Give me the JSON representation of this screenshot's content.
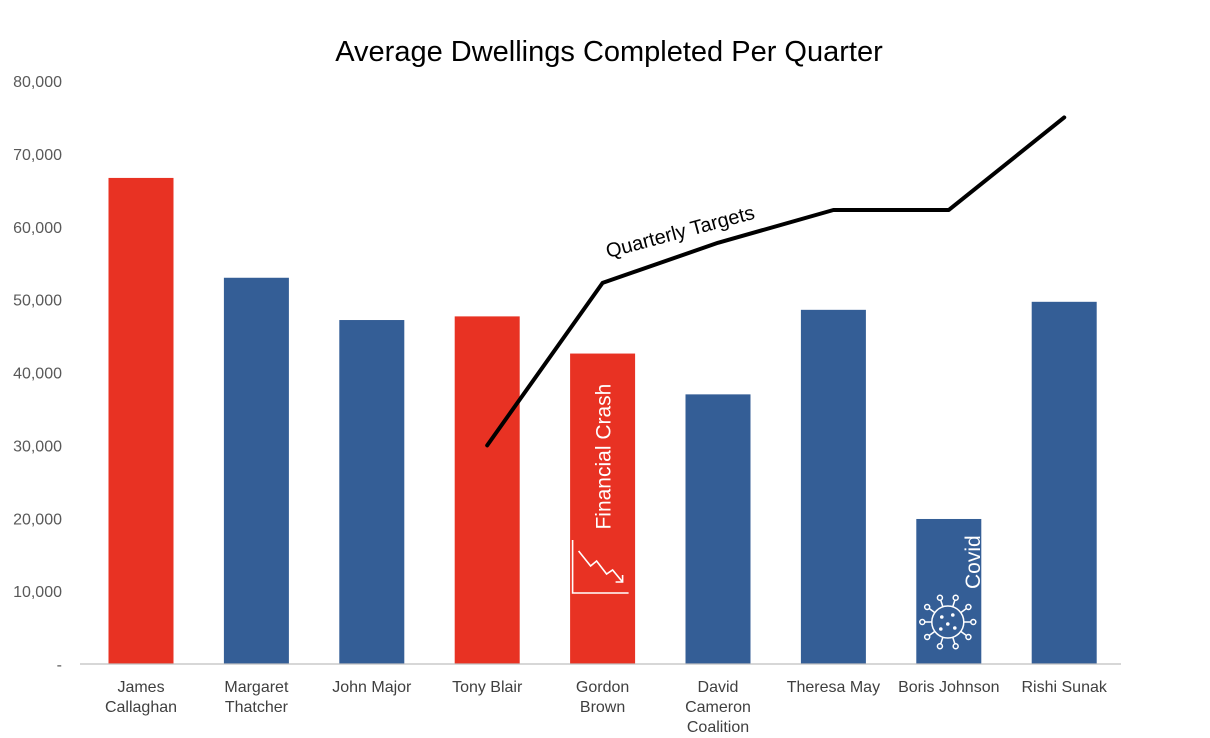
{
  "chart_data": {
    "type": "bar",
    "title": "Average Dwellings Completed Per Quarter",
    "xlabel": "",
    "ylabel": "",
    "ylim": [
      0,
      80000
    ],
    "y_ticks": [
      "-",
      "10,000",
      "20,000",
      "30,000",
      "40,000",
      "50,000",
      "60,000",
      "70,000",
      "80,000"
    ],
    "grid": false,
    "categories": [
      [
        "James",
        "Callaghan"
      ],
      [
        "Margaret",
        "Thatcher"
      ],
      [
        "John Major"
      ],
      [
        "Tony Blair"
      ],
      [
        "Gordon",
        "Brown"
      ],
      [
        "David",
        "Cameron",
        "Coalition"
      ],
      [
        "Theresa May"
      ],
      [
        "Boris Johnson"
      ],
      [
        "Rishi Sunak"
      ]
    ],
    "values": [
      66700,
      53000,
      47200,
      47700,
      42600,
      37000,
      48600,
      19900,
      49700
    ],
    "bar_colors": [
      "#e83223",
      "#345e96",
      "#345e96",
      "#e83223",
      "#e83223",
      "#345e96",
      "#345e96",
      "#345e96",
      "#345e96"
    ],
    "line_series": {
      "name": "Quarterly Targets",
      "points": [
        {
          "x_index": 3,
          "y": 30000
        },
        {
          "x_index": 4,
          "y": 52300
        },
        {
          "x_index": 5,
          "y": 57800
        },
        {
          "x_index": 6,
          "y": 62300
        },
        {
          "x_index": 7,
          "y": 62300
        },
        {
          "x_index": 8,
          "y": 75000
        }
      ],
      "color": "#000000"
    },
    "annotations": [
      {
        "text": "Financial Crash",
        "bar_index": 4,
        "icon": "declining-chart-icon"
      },
      {
        "text": "Covid",
        "bar_index": 7,
        "icon": "virus-icon"
      }
    ]
  }
}
